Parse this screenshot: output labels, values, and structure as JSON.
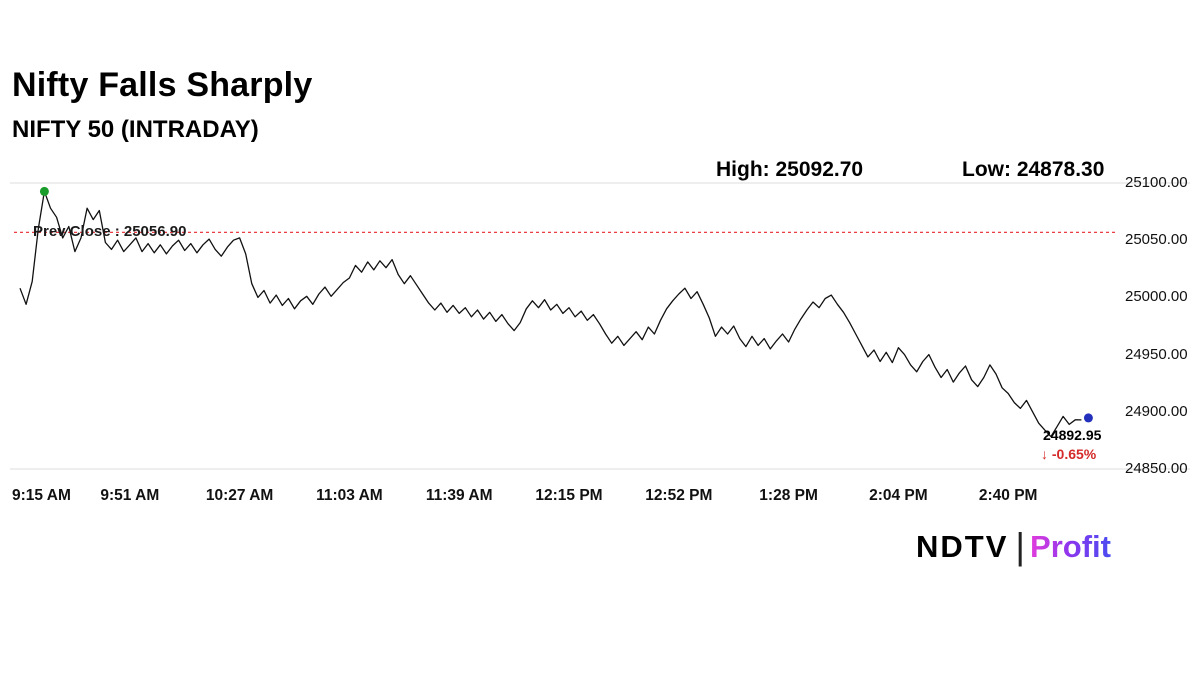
{
  "header": {
    "title": "Nifty Falls Sharply",
    "subtitle": "NIFTY 50 (INTRADAY)"
  },
  "stats": {
    "high_label": "High: 25092.70",
    "low_label": "Low: 24878.30",
    "prev_close_label": "Prev Close : 25056.90",
    "last_price": "24892.95",
    "change_label": "↓ -0.65%"
  },
  "logo": {
    "ndtv": "NDTV",
    "separator": "|",
    "profit": "Profit"
  },
  "chart_data": {
    "type": "line",
    "title": "NIFTY 50 (INTRADAY)",
    "high": 25092.7,
    "low": 24878.3,
    "prev_close": 25056.9,
    "last": 24892.95,
    "change_pct": -0.65,
    "ylim": [
      24850,
      25100
    ],
    "grid": "horizontal-minimal",
    "line_color": "#111111",
    "prev_close_color": "#e8262a",
    "start_dot_color": "#1a9c2a",
    "end_dot_color": "#2230bb",
    "x_ticks": [
      {
        "label": "9:15 AM",
        "t": 0
      },
      {
        "label": "9:51 AM",
        "t": 36
      },
      {
        "label": "10:27 AM",
        "t": 72
      },
      {
        "label": "11:03 AM",
        "t": 108
      },
      {
        "label": "11:39 AM",
        "t": 144
      },
      {
        "label": "12:15 PM",
        "t": 180
      },
      {
        "label": "12:52 PM",
        "t": 216
      },
      {
        "label": "1:28 PM",
        "t": 252
      },
      {
        "label": "2:04 PM",
        "t": 288
      },
      {
        "label": "2:40 PM",
        "t": 324
      }
    ],
    "y_ticks": [
      {
        "label": "25100.00",
        "v": 25100
      },
      {
        "label": "25050.00",
        "v": 25050
      },
      {
        "label": "25000.00",
        "v": 25000
      },
      {
        "label": "24950.00",
        "v": 24950
      },
      {
        "label": "24900.00",
        "v": 24900
      },
      {
        "label": "24850.00",
        "v": 24850
      }
    ],
    "points": [
      [
        0,
        25008
      ],
      [
        2,
        24994
      ],
      [
        4,
        25014
      ],
      [
        6,
        25060
      ],
      [
        8,
        25092.7
      ],
      [
        10,
        25078
      ],
      [
        12,
        25070
      ],
      [
        14,
        25052
      ],
      [
        16,
        25062
      ],
      [
        18,
        25040
      ],
      [
        20,
        25052
      ],
      [
        22,
        25078
      ],
      [
        24,
        25068
      ],
      [
        26,
        25076
      ],
      [
        28,
        25048
      ],
      [
        30,
        25042
      ],
      [
        32,
        25050
      ],
      [
        34,
        25040
      ],
      [
        36,
        25046
      ],
      [
        38,
        25052
      ],
      [
        40,
        25040
      ],
      [
        42,
        25047
      ],
      [
        44,
        25039
      ],
      [
        46,
        25046
      ],
      [
        48,
        25038
      ],
      [
        50,
        25045
      ],
      [
        52,
        25050
      ],
      [
        54,
        25041
      ],
      [
        56,
        25047
      ],
      [
        58,
        25039
      ],
      [
        60,
        25046
      ],
      [
        62,
        25051
      ],
      [
        64,
        25042
      ],
      [
        66,
        25036
      ],
      [
        68,
        25044
      ],
      [
        70,
        25050
      ],
      [
        72,
        25052
      ],
      [
        74,
        25038
      ],
      [
        76,
        25012
      ],
      [
        78,
        25000
      ],
      [
        80,
        25006
      ],
      [
        82,
        24995
      ],
      [
        84,
        25002
      ],
      [
        86,
        24993
      ],
      [
        88,
        24999
      ],
      [
        90,
        24990
      ],
      [
        92,
        24997
      ],
      [
        94,
        25001
      ],
      [
        96,
        24994
      ],
      [
        98,
        25003
      ],
      [
        100,
        25009
      ],
      [
        102,
        25001
      ],
      [
        104,
        25007
      ],
      [
        106,
        25013
      ],
      [
        108,
        25017
      ],
      [
        110,
        25028
      ],
      [
        112,
        25022
      ],
      [
        114,
        25031
      ],
      [
        116,
        25024
      ],
      [
        118,
        25032
      ],
      [
        120,
        25026
      ],
      [
        122,
        25033
      ],
      [
        124,
        25020
      ],
      [
        126,
        25012
      ],
      [
        128,
        25019
      ],
      [
        130,
        25011
      ],
      [
        132,
        25003
      ],
      [
        134,
        24995
      ],
      [
        136,
        24989
      ],
      [
        138,
        24995
      ],
      [
        140,
        24987
      ],
      [
        142,
        24993
      ],
      [
        144,
        24986
      ],
      [
        146,
        24991
      ],
      [
        148,
        24983
      ],
      [
        150,
        24989
      ],
      [
        152,
        24981
      ],
      [
        154,
        24987
      ],
      [
        156,
        24979
      ],
      [
        158,
        24985
      ],
      [
        160,
        24977
      ],
      [
        162,
        24971
      ],
      [
        164,
        24978
      ],
      [
        166,
        24990
      ],
      [
        168,
        24997
      ],
      [
        170,
        24991
      ],
      [
        172,
        24998
      ],
      [
        174,
        24989
      ],
      [
        176,
        24994
      ],
      [
        178,
        24986
      ],
      [
        180,
        24991
      ],
      [
        182,
        24983
      ],
      [
        184,
        24988
      ],
      [
        186,
        24980
      ],
      [
        188,
        24985
      ],
      [
        190,
        24977
      ],
      [
        192,
        24968
      ],
      [
        194,
        24960
      ],
      [
        196,
        24966
      ],
      [
        198,
        24958
      ],
      [
        200,
        24964
      ],
      [
        202,
        24970
      ],
      [
        204,
        24963
      ],
      [
        206,
        24974
      ],
      [
        208,
        24968
      ],
      [
        210,
        24980
      ],
      [
        212,
        24990
      ],
      [
        214,
        24997
      ],
      [
        216,
        25003
      ],
      [
        218,
        25008
      ],
      [
        220,
        24999
      ],
      [
        222,
        25005
      ],
      [
        224,
        24994
      ],
      [
        226,
        24982
      ],
      [
        228,
        24966
      ],
      [
        230,
        24974
      ],
      [
        232,
        24968
      ],
      [
        234,
        24975
      ],
      [
        236,
        24964
      ],
      [
        238,
        24957
      ],
      [
        240,
        24966
      ],
      [
        242,
        24958
      ],
      [
        244,
        24964
      ],
      [
        246,
        24955
      ],
      [
        248,
        24962
      ],
      [
        250,
        24968
      ],
      [
        252,
        24961
      ],
      [
        254,
        24972
      ],
      [
        256,
        24981
      ],
      [
        258,
        24989
      ],
      [
        260,
        24996
      ],
      [
        262,
        24991
      ],
      [
        264,
        24999
      ],
      [
        266,
        25002
      ],
      [
        268,
        24994
      ],
      [
        270,
        24987
      ],
      [
        272,
        24978
      ],
      [
        274,
        24968
      ],
      [
        276,
        24958
      ],
      [
        278,
        24948
      ],
      [
        280,
        24954
      ],
      [
        282,
        24944
      ],
      [
        284,
        24952
      ],
      [
        286,
        24943
      ],
      [
        288,
        24956
      ],
      [
        290,
        24950
      ],
      [
        292,
        24941
      ],
      [
        294,
        24935
      ],
      [
        296,
        24944
      ],
      [
        298,
        24950
      ],
      [
        300,
        24939
      ],
      [
        302,
        24930
      ],
      [
        304,
        24937
      ],
      [
        306,
        24926
      ],
      [
        308,
        24934
      ],
      [
        310,
        24940
      ],
      [
        312,
        24928
      ],
      [
        314,
        24922
      ],
      [
        316,
        24930
      ],
      [
        318,
        24941
      ],
      [
        320,
        24933
      ],
      [
        322,
        24921
      ],
      [
        324,
        24916
      ],
      [
        326,
        24908
      ],
      [
        328,
        24903
      ],
      [
        330,
        24910
      ],
      [
        332,
        24900
      ],
      [
        334,
        24890
      ],
      [
        336,
        24884
      ],
      [
        338,
        24878.3
      ],
      [
        340,
        24887
      ],
      [
        342,
        24896
      ],
      [
        344,
        24889
      ],
      [
        346,
        24893
      ],
      [
        348,
        24892.95
      ]
    ]
  }
}
